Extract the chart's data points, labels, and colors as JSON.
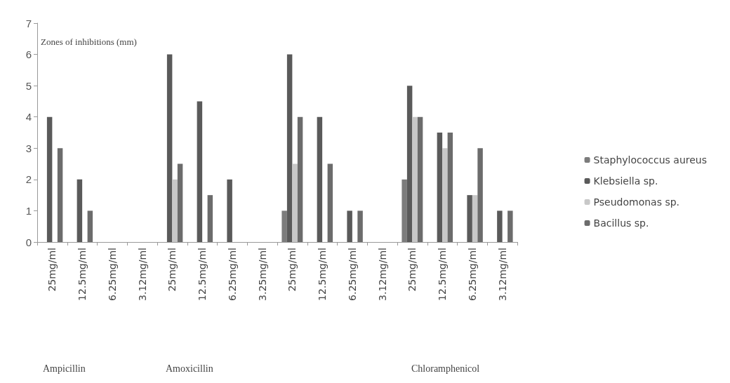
{
  "chart_data": {
    "type": "bar",
    "ylabel": "Zones of inhibitions (mm)",
    "categories": [
      "25mg/ml",
      "12.5mg/ml",
      "6.25mg/ml",
      "3.12mg/ml",
      "25mg/ml",
      "12.5mg/ml",
      "6.25mg/ml",
      "3.25mg/ml",
      "25mg/ml",
      "12.5mg/ml",
      "6.25mg/ml",
      "3.12mg/ml",
      "25mg/ml",
      "12.5mg/ml",
      "6.25mg/ml",
      "3.12mg/ml"
    ],
    "series": [
      {
        "name": "Staphylococcus aureus",
        "color": "#7c7c7c",
        "values": [
          0,
          0,
          0,
          0,
          0,
          0,
          0,
          0,
          1,
          0,
          0,
          0,
          2,
          0,
          0,
          0
        ]
      },
      {
        "name": "Klebsiella sp.",
        "color": "#5a5a5a",
        "values": [
          4,
          2,
          0,
          0,
          6,
          4.5,
          2,
          0,
          6,
          4,
          1,
          0,
          5,
          3.5,
          1.5,
          1
        ]
      },
      {
        "name": "Pseudomonas sp.",
        "color": "#c8c8c8",
        "values": [
          0,
          0,
          0,
          0,
          2,
          0,
          0,
          0,
          2.5,
          0,
          0,
          0,
          4,
          3,
          1.5,
          0
        ]
      },
      {
        "name": "Bacillus sp.",
        "color": "#6c6c6c",
        "values": [
          3,
          1,
          0,
          0,
          2.5,
          1.5,
          0,
          0,
          4,
          2.5,
          1,
          0,
          4,
          3.5,
          3,
          1
        ]
      }
    ],
    "ylim": [
      0,
      7
    ],
    "yticks": [
      0,
      1,
      2,
      3,
      4,
      5,
      6,
      7
    ],
    "grid": false,
    "legend": "right",
    "annotations": [
      "Ampicillin",
      "Amoxicillin",
      "Chloramphenicol"
    ]
  }
}
